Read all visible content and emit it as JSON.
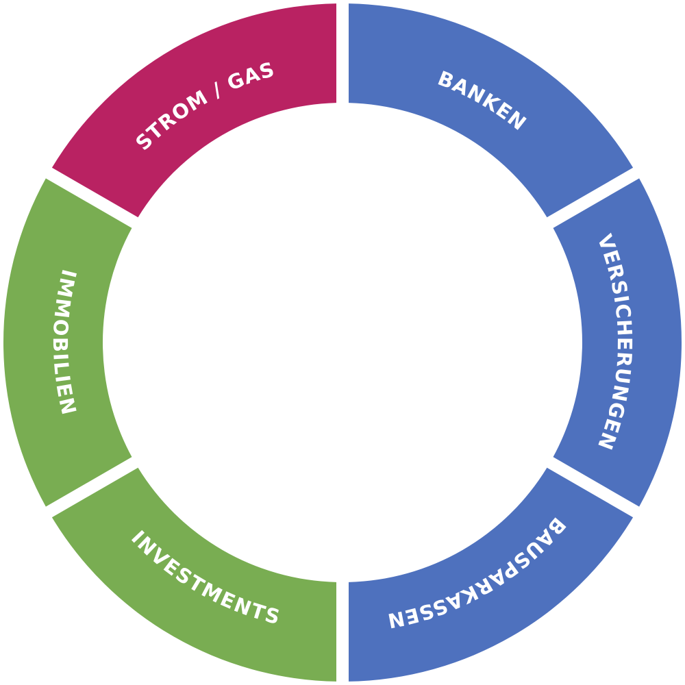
{
  "diagram": {
    "type": "segmented-ring",
    "segments": [
      {
        "key": "banken",
        "label": "BANKEN",
        "color": "#4E71BE"
      },
      {
        "key": "versicherungen",
        "label": "VERSICHERUNGEN",
        "color": "#4E71BE"
      },
      {
        "key": "bausparkassen",
        "label": "BAUSPARKASSEN",
        "color": "#4E71BE"
      },
      {
        "key": "investments",
        "label": "INVESTMENTS",
        "color": "#79AD52"
      },
      {
        "key": "immobilien",
        "label": "IMMOBILIEN",
        "color": "#79AD52"
      },
      {
        "key": "strom-gas",
        "label": "STROM / GAS",
        "color": "#B92262"
      }
    ]
  }
}
